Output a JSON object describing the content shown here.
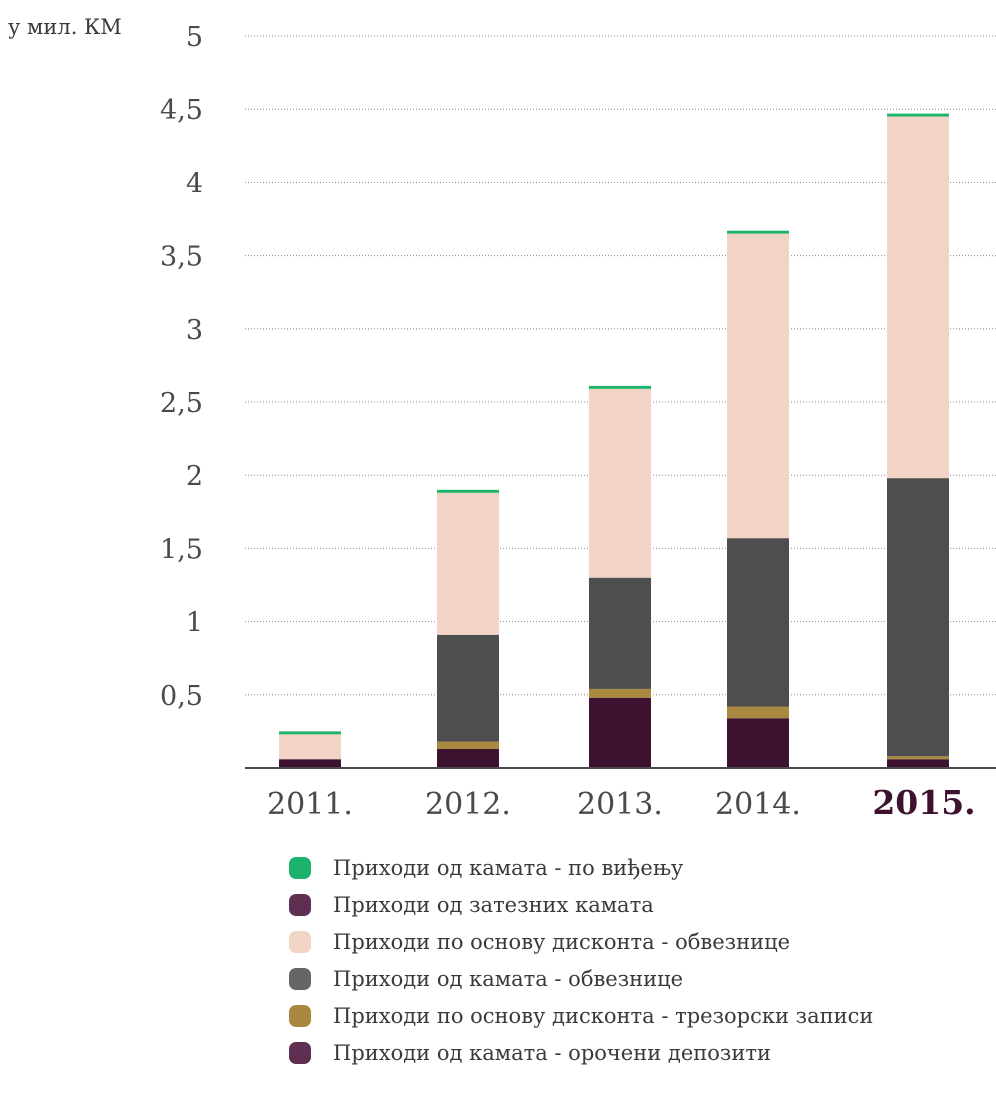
{
  "chart_data": {
    "type": "bar",
    "stacked": true,
    "unit_label": "у мил. КМ",
    "categories": [
      "2011.",
      "2012.",
      "2013.",
      "2014.",
      "2015."
    ],
    "highlight_category": "2015.",
    "ylim": [
      0,
      5
    ],
    "yticks": [
      {
        "value": 0.5,
        "label": "0,5"
      },
      {
        "value": 1,
        "label": "1"
      },
      {
        "value": 1.5,
        "label": "1,5"
      },
      {
        "value": 2,
        "label": "2"
      },
      {
        "value": 2.5,
        "label": "2,5"
      },
      {
        "value": 3,
        "label": "3"
      },
      {
        "value": 3.5,
        "label": "3,5"
      },
      {
        "value": 4,
        "label": "4"
      },
      {
        "value": 4.5,
        "label": "4,5"
      },
      {
        "value": 5,
        "label": "5"
      }
    ],
    "grid": true,
    "legend_position": "bottom",
    "series": [
      {
        "name": "Приходи од камата - орочени депозити",
        "color": "#3d1230",
        "legend_color": "#5e2f50",
        "values": [
          0.06,
          0.13,
          0.48,
          0.34,
          0.06
        ]
      },
      {
        "name": "Приходи по основу дисконта - трезорски записи",
        "color": "#a8893f",
        "legend_color": "#a8893f",
        "values": [
          0.0,
          0.05,
          0.06,
          0.08,
          0.02
        ]
      },
      {
        "name": "Приходи од камата - обвезнице",
        "color": "#4e4e4f",
        "legend_color": "#666666",
        "values": [
          0.0,
          0.73,
          0.76,
          1.15,
          1.9
        ]
      },
      {
        "name": "Приходи по основу дисконта - обвезнице",
        "color": "#f2d4c6",
        "legend_color": "#f2d4c6",
        "values": [
          0.17,
          0.97,
          1.29,
          2.08,
          2.47
        ]
      },
      {
        "name": "Приходи од затезних камата",
        "color": "#5e2f50",
        "legend_color": "#5e2f50",
        "values": [
          0.0,
          0.0,
          0.0,
          0.0,
          0.0
        ]
      },
      {
        "name": "Приходи од камата - по виђењу",
        "color": "#1db36a",
        "legend_color": "#1db36a",
        "values": [
          0.02,
          0.02,
          0.02,
          0.02,
          0.02
        ]
      }
    ],
    "legend_order": [
      5,
      4,
      3,
      2,
      1,
      0
    ]
  }
}
